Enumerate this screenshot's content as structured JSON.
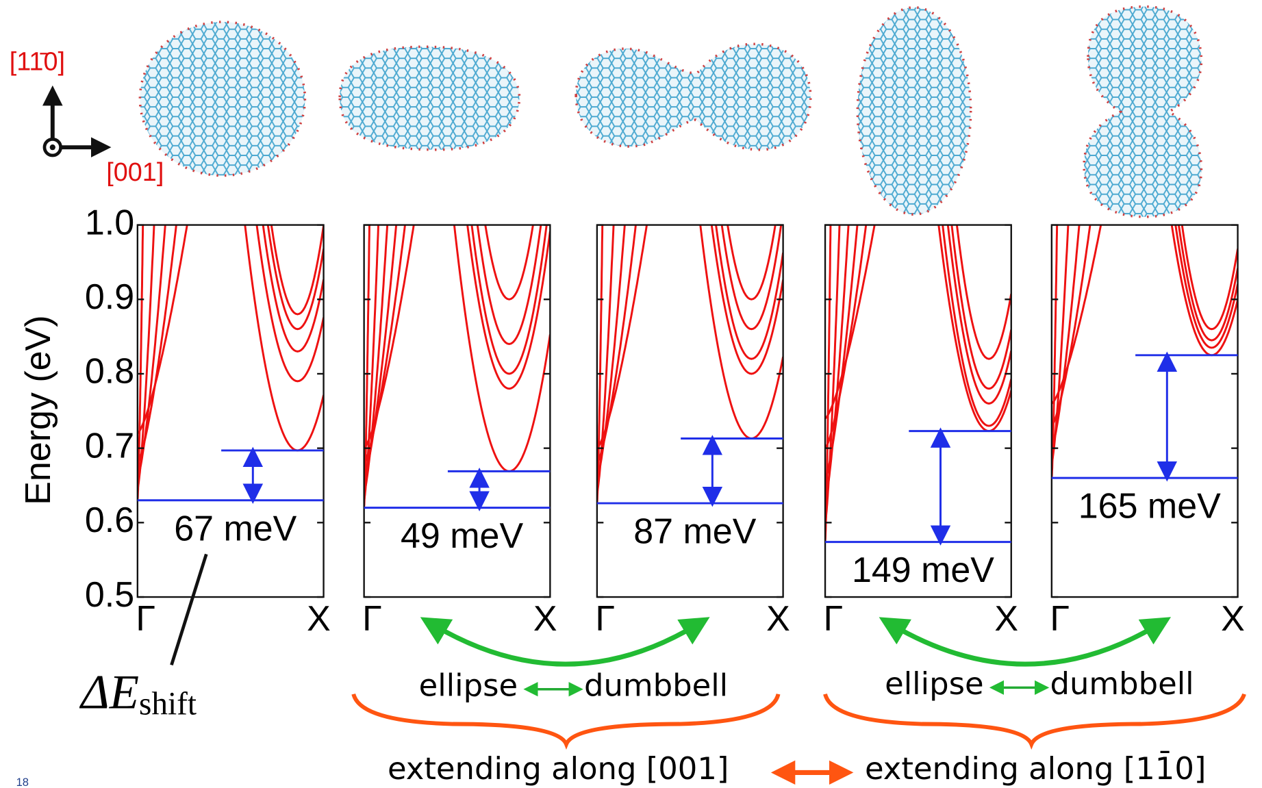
{
  "chart_data": {
    "type": "band",
    "y_label": "Energy (eV)",
    "ylim": [
      0.5,
      1.0
    ],
    "yticks": [
      0.5,
      0.6,
      0.7,
      0.8,
      0.9,
      {
        "value": 1.0,
        "label": "1.0"
      }
    ],
    "xlim": [
      0,
      1
    ],
    "xticks": [
      {
        "value": 0,
        "label": "Γ"
      },
      {
        "value": 1,
        "label": "X"
      }
    ],
    "band_color": "#ee1111",
    "level_color": "#1f2ee8",
    "panels": [
      {
        "gamma_minima": [
          0.63,
          0.645,
          0.66,
          0.68,
          0.72
        ],
        "valley_k": 0.86,
        "valley_minima": [
          0.697,
          0.79,
          0.83,
          0.86,
          0.88
        ],
        "levels": [
          0.63,
          0.697
        ],
        "shift_label": "67 meV"
      },
      {
        "gamma_minima": [
          0.62,
          0.63,
          0.64,
          0.66,
          0.68,
          0.7
        ],
        "valley_k": 0.78,
        "valley_minima": [
          0.669,
          0.78,
          0.8,
          0.84,
          0.9
        ],
        "levels": [
          0.62,
          0.669
        ],
        "shift_label": "49 meV"
      },
      {
        "gamma_minima": [
          0.626,
          0.64,
          0.66,
          0.68,
          0.7
        ],
        "valley_k": 0.83,
        "valley_minima": [
          0.713,
          0.8,
          0.82,
          0.86,
          0.9
        ],
        "levels": [
          0.626,
          0.713
        ],
        "shift_label": "87 meV"
      },
      {
        "gamma_minima": [
          0.574,
          0.6,
          0.63,
          0.66,
          0.7,
          0.74
        ],
        "valley_k": 0.88,
        "valley_minima": [
          0.723,
          0.73,
          0.76,
          0.78,
          0.82
        ],
        "levels": [
          0.574,
          0.723
        ],
        "shift_label": "149 meV"
      },
      {
        "gamma_minima": [
          0.66,
          0.68,
          0.7,
          0.73,
          0.76
        ],
        "valley_k": 0.86,
        "valley_minima": [
          0.825,
          0.835,
          0.845,
          0.86
        ],
        "levels": [
          0.66,
          0.825
        ],
        "shift_label": "165 meV"
      }
    ]
  },
  "annotations": {
    "direction_vertical": "[11̄0]",
    "direction_horizontal": "[001]",
    "delta_symbol": "ΔE",
    "delta_subscript": "shift",
    "comparisons": [
      {
        "left": "ellipse",
        "right": "dumbbell"
      },
      {
        "left": "ellipse",
        "right": "dumbbell"
      }
    ],
    "extending": [
      "extending along [001]",
      "extending along [11̄0]"
    ],
    "page_number": "18"
  }
}
